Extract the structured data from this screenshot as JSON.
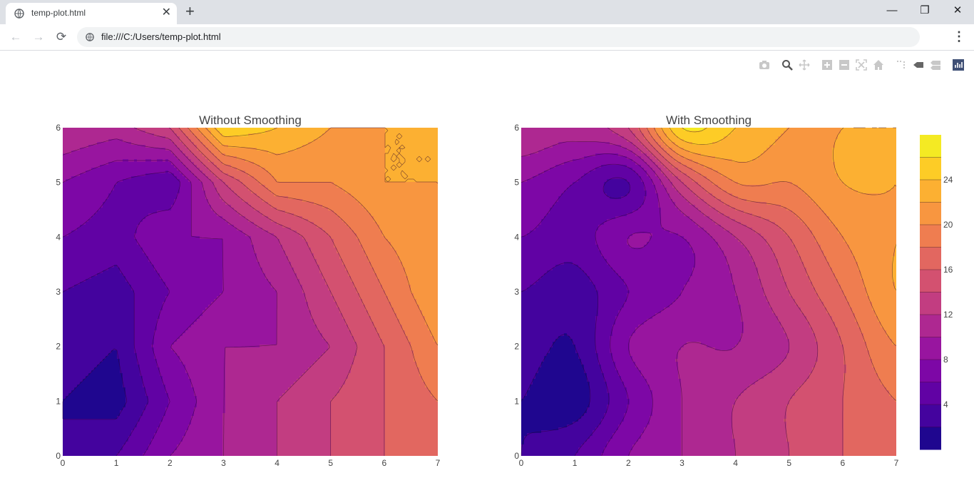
{
  "browser": {
    "tab_title": "temp-plot.html",
    "new_tab_label": "+",
    "url": "file:///C:/Users/temp-plot.html",
    "window_controls": [
      "minimize-icon",
      "restore-icon",
      "close-icon"
    ]
  },
  "modebar": {
    "buttons": [
      "camera-icon",
      "zoom-icon",
      "pan-icon",
      "zoom-in-icon",
      "zoom-out-icon",
      "autoscale-icon",
      "reset-axes-icon",
      "spike-lines-icon",
      "hover-closest-icon",
      "hover-compare-icon",
      "plotly-logo-icon"
    ]
  },
  "chart_data": [
    {
      "type": "contour",
      "title": "Without Smoothing",
      "line_smoothing": 0,
      "x": [
        0,
        1,
        2,
        3,
        4,
        5,
        6,
        7
      ],
      "y": [
        0,
        1,
        2,
        3,
        4,
        5,
        6
      ],
      "xlim": [
        0,
        7
      ],
      "ylim": [
        0,
        6
      ],
      "x_ticks": [
        "0",
        "1",
        "2",
        "3",
        "4",
        "5",
        "6",
        "7"
      ],
      "y_ticks": [
        "0",
        "1",
        "2",
        "3",
        "4",
        "5",
        "6"
      ],
      "z": [
        [
          2,
          4,
          8,
          10,
          12,
          14,
          16,
          18
        ],
        [
          2,
          1,
          6,
          10,
          12,
          14,
          16,
          18
        ],
        [
          3,
          2,
          8,
          10,
          10,
          12,
          16,
          20
        ],
        [
          4,
          3,
          6,
          8,
          10,
          14,
          18,
          22
        ],
        [
          6,
          5,
          8,
          8,
          12,
          16,
          20,
          22
        ],
        [
          8,
          6,
          4,
          14,
          20,
          20,
          22,
          22
        ],
        [
          12,
          11,
          14,
          26,
          24,
          22,
          22,
          22
        ]
      ],
      "colorscale": [
        "#0d0887",
        "#46039f",
        "#7201a8",
        "#9c179e",
        "#bd3786",
        "#d8576b",
        "#ed7953",
        "#fb9f3a",
        "#fdca26",
        "#f0f921"
      ]
    },
    {
      "type": "contour",
      "title": "With Smoothing",
      "line_smoothing": 0.85,
      "x": [
        0,
        1,
        2,
        3,
        4,
        5,
        6,
        7
      ],
      "y": [
        0,
        1,
        2,
        3,
        4,
        5,
        6
      ],
      "xlim": [
        0,
        7
      ],
      "ylim": [
        0,
        6
      ],
      "x_ticks": [
        "0",
        "1",
        "2",
        "3",
        "4",
        "5",
        "6",
        "7"
      ],
      "y_ticks": [
        "0",
        "1",
        "2",
        "3",
        "4",
        "5",
        "6"
      ],
      "z": [
        [
          2,
          4,
          8,
          10,
          12,
          14,
          16,
          18
        ],
        [
          2,
          1,
          6,
          10,
          12,
          14,
          16,
          18
        ],
        [
          3,
          2,
          8,
          10,
          10,
          12,
          16,
          20
        ],
        [
          4,
          3,
          6,
          8,
          10,
          14,
          18,
          22
        ],
        [
          6,
          5,
          8,
          8,
          12,
          16,
          20,
          22
        ],
        [
          8,
          6,
          4,
          14,
          20,
          20,
          22,
          22
        ],
        [
          12,
          11,
          14,
          26,
          24,
          22,
          22,
          22
        ]
      ],
      "colorbar": {
        "ticks": [
          "4",
          "8",
          "12",
          "16",
          "20",
          "24"
        ],
        "range": [
          0,
          28
        ]
      }
    }
  ]
}
